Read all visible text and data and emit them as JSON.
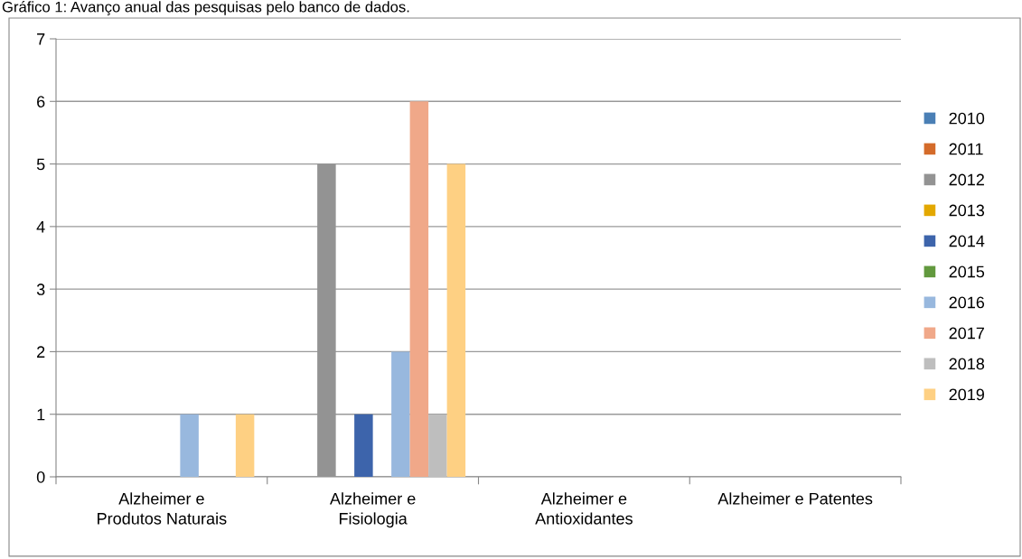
{
  "chart_data": {
    "type": "bar",
    "title": "Gráfico 1: Avanço anual das pesquisas pelo banco de dados.",
    "categories": [
      "Alzheimer e\nProdutos Naturais",
      "Alzheimer e\nFisiologia",
      "Alzheimer e\nAntioxidantes",
      "Alzheimer e Patentes"
    ],
    "series": [
      {
        "name": "2010",
        "color": "#4a7fb5",
        "values": [
          0,
          0,
          0,
          0
        ]
      },
      {
        "name": "2011",
        "color": "#d46b2a",
        "values": [
          0,
          0,
          0,
          0
        ]
      },
      {
        "name": "2012",
        "color": "#939393",
        "values": [
          0,
          5,
          0,
          0
        ]
      },
      {
        "name": "2013",
        "color": "#e3a800",
        "values": [
          0,
          0,
          0,
          0
        ]
      },
      {
        "name": "2014",
        "color": "#3d64ab",
        "values": [
          0,
          1,
          0,
          0
        ]
      },
      {
        "name": "2015",
        "color": "#62993e",
        "values": [
          0,
          0,
          0,
          0
        ]
      },
      {
        "name": "2016",
        "color": "#98b8de",
        "values": [
          1,
          2,
          0,
          0
        ]
      },
      {
        "name": "2017",
        "color": "#f0a889",
        "values": [
          0,
          6,
          0,
          0
        ]
      },
      {
        "name": "2018",
        "color": "#bebebe",
        "values": [
          0,
          1,
          0,
          0
        ]
      },
      {
        "name": "2019",
        "color": "#fed083",
        "values": [
          1,
          5,
          0,
          0
        ]
      }
    ],
    "ylim": [
      0,
      7
    ],
    "yticks": [
      0,
      1,
      2,
      3,
      4,
      5,
      6,
      7
    ],
    "grid": "y",
    "legend": "right"
  }
}
